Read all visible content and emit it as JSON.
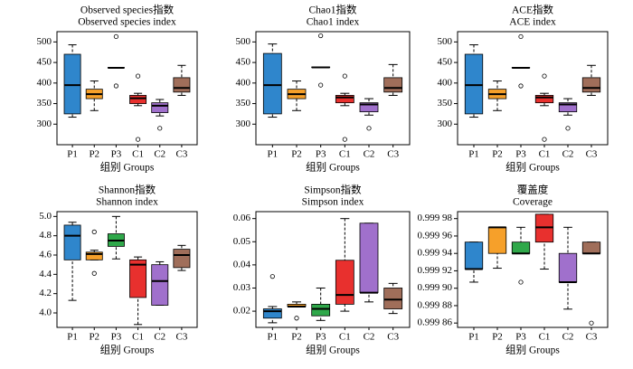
{
  "chart_data": [
    {
      "type": "box",
      "title": "Observed species指数",
      "subtitle": "Observed species index",
      "xlabel": "组别 Groups",
      "categories": [
        "P1",
        "P2",
        "P3",
        "C1",
        "C2",
        "C3"
      ],
      "colors": [
        "#2f86cc",
        "#f6a02a",
        "#2fa84a",
        "#e8302e",
        "#a070cc",
        "#a06e5a"
      ],
      "ylim": [
        250,
        525
      ],
      "yticks": [
        300,
        350,
        400,
        450,
        500
      ],
      "boxes": [
        {
          "min": 317,
          "q1": 325,
          "median": 395,
          "q3": 470,
          "max": 493,
          "outliers": []
        },
        {
          "min": 333,
          "q1": 362,
          "median": 373,
          "q3": 385,
          "max": 405,
          "outliers": []
        },
        {
          "min": 437,
          "q1": 437,
          "median": 437,
          "q3": 438,
          "max": 438,
          "outliers": [
            513,
            393
          ]
        },
        {
          "min": 345,
          "q1": 350,
          "median": 363,
          "q3": 370,
          "max": 375,
          "outliers": [
            417,
            263
          ]
        },
        {
          "min": 320,
          "q1": 328,
          "median": 345,
          "q3": 352,
          "max": 360,
          "outliers": [
            290
          ]
        },
        {
          "min": 370,
          "q1": 378,
          "median": 388,
          "q3": 413,
          "max": 443,
          "outliers": []
        }
      ]
    },
    {
      "type": "box",
      "title": "Chao1指数",
      "subtitle": "Chao1 index",
      "xlabel": "组别 Groups",
      "categories": [
        "P1",
        "P2",
        "P3",
        "C1",
        "C2",
        "C3"
      ],
      "colors": [
        "#2f86cc",
        "#f6a02a",
        "#2fa84a",
        "#e8302e",
        "#a070cc",
        "#a06e5a"
      ],
      "ylim": [
        250,
        525
      ],
      "yticks": [
        300,
        350,
        400,
        450,
        500
      ],
      "boxes": [
        {
          "min": 317,
          "q1": 325,
          "median": 395,
          "q3": 472,
          "max": 495,
          "outliers": []
        },
        {
          "min": 333,
          "q1": 362,
          "median": 373,
          "q3": 385,
          "max": 405,
          "outliers": []
        },
        {
          "min": 438,
          "q1": 438,
          "median": 438,
          "q3": 439,
          "max": 439,
          "outliers": [
            515,
            395
          ]
        },
        {
          "min": 345,
          "q1": 352,
          "median": 365,
          "q3": 370,
          "max": 375,
          "outliers": [
            417,
            263
          ]
        },
        {
          "min": 322,
          "q1": 330,
          "median": 348,
          "q3": 352,
          "max": 362,
          "outliers": [
            290
          ]
        },
        {
          "min": 370,
          "q1": 378,
          "median": 388,
          "q3": 413,
          "max": 445,
          "outliers": []
        }
      ]
    },
    {
      "type": "box",
      "title": "ACE指数",
      "subtitle": "ACE index",
      "xlabel": "组别 Groups",
      "categories": [
        "P1",
        "P2",
        "P3",
        "C1",
        "C2",
        "C3"
      ],
      "colors": [
        "#2f86cc",
        "#f6a02a",
        "#2fa84a",
        "#e8302e",
        "#a070cc",
        "#a06e5a"
      ],
      "ylim": [
        250,
        525
      ],
      "yticks": [
        300,
        350,
        400,
        450,
        500
      ],
      "boxes": [
        {
          "min": 317,
          "q1": 325,
          "median": 395,
          "q3": 470,
          "max": 493,
          "outliers": []
        },
        {
          "min": 333,
          "q1": 362,
          "median": 373,
          "q3": 385,
          "max": 405,
          "outliers": []
        },
        {
          "min": 437,
          "q1": 437,
          "median": 437,
          "q3": 438,
          "max": 438,
          "outliers": [
            513,
            393
          ]
        },
        {
          "min": 345,
          "q1": 352,
          "median": 365,
          "q3": 370,
          "max": 375,
          "outliers": [
            417,
            263
          ]
        },
        {
          "min": 322,
          "q1": 330,
          "median": 348,
          "q3": 352,
          "max": 362,
          "outliers": [
            290
          ]
        },
        {
          "min": 370,
          "q1": 378,
          "median": 388,
          "q3": 413,
          "max": 443,
          "outliers": []
        }
      ]
    },
    {
      "type": "box",
      "title": "Shannon指数",
      "subtitle": "Shannon index",
      "xlabel": "组别 Groups",
      "categories": [
        "P1",
        "P2",
        "P3",
        "C1",
        "C2",
        "C3"
      ],
      "colors": [
        "#2f86cc",
        "#f6a02a",
        "#2fa84a",
        "#e8302e",
        "#a070cc",
        "#a06e5a"
      ],
      "ylim": [
        3.85,
        5.05
      ],
      "yticks": [
        {
          "value": 4,
          "label": "4.0"
        },
        4.2,
        4.4,
        4.6,
        4.8,
        {
          "value": 5,
          "label": "5.0"
        }
      ],
      "boxes": [
        {
          "min": 4.13,
          "q1": 4.55,
          "median": 4.8,
          "q3": 4.91,
          "max": 4.94,
          "outliers": []
        },
        {
          "min": 4.55,
          "q1": 4.55,
          "median": 4.61,
          "q3": 4.63,
          "max": 4.65,
          "outliers": [
            4.84,
            4.41
          ]
        },
        {
          "min": 4.56,
          "q1": 4.69,
          "median": 4.75,
          "q3": 4.82,
          "max": 5.0,
          "outliers": []
        },
        {
          "min": 3.88,
          "q1": 4.16,
          "median": 4.5,
          "q3": 4.55,
          "max": 4.58,
          "outliers": []
        },
        {
          "min": 4.08,
          "q1": 4.08,
          "median": 4.33,
          "q3": 4.5,
          "max": 4.53,
          "outliers": []
        },
        {
          "min": 4.44,
          "q1": 4.47,
          "median": 4.6,
          "q3": 4.66,
          "max": 4.7,
          "outliers": []
        }
      ]
    },
    {
      "type": "box",
      "title": "Simpson指数",
      "subtitle": "Simpson index",
      "xlabel": "组别 Groups",
      "categories": [
        "P1",
        "P2",
        "P3",
        "C1",
        "C2",
        "C3"
      ],
      "colors": [
        "#2f86cc",
        "#f6a02a",
        "#2fa84a",
        "#e8302e",
        "#a070cc",
        "#a06e5a"
      ],
      "ylim": [
        0.013,
        0.063
      ],
      "yticks": [
        0.02,
        0.03,
        0.04,
        0.05,
        0.06
      ],
      "boxes": [
        {
          "min": 0.015,
          "q1": 0.017,
          "median": 0.02,
          "q3": 0.021,
          "max": 0.022,
          "outliers": [
            0.035
          ]
        },
        {
          "min": 0.022,
          "q1": 0.022,
          "median": 0.022,
          "q3": 0.023,
          "max": 0.024,
          "outliers": [
            0.017
          ]
        },
        {
          "min": 0.016,
          "q1": 0.018,
          "median": 0.021,
          "q3": 0.023,
          "max": 0.03,
          "outliers": []
        },
        {
          "min": 0.02,
          "q1": 0.023,
          "median": 0.027,
          "q3": 0.042,
          "max": 0.06,
          "outliers": []
        },
        {
          "min": 0.024,
          "q1": 0.028,
          "median": 0.028,
          "q3": 0.058,
          "max": 0.058,
          "outliers": []
        },
        {
          "min": 0.019,
          "q1": 0.021,
          "median": 0.025,
          "q3": 0.03,
          "max": 0.032,
          "outliers": []
        }
      ]
    },
    {
      "type": "box",
      "title": "覆盖度",
      "subtitle": "Coverage",
      "xlabel": "组别 Groups",
      "categories": [
        "P1",
        "P2",
        "P3",
        "C1",
        "C2",
        "C3"
      ],
      "colors": [
        "#2f86cc",
        "#f6a02a",
        "#2fa84a",
        "#e8302e",
        "#a070cc",
        "#a06e5a"
      ],
      "ylim": [
        0.999855,
        0.999988
      ],
      "yticks": [
        {
          "value": 0.99986,
          "label": "0.999 86"
        },
        {
          "value": 0.99988,
          "label": "0.999 88"
        },
        {
          "value": 0.9999,
          "label": "0.999 90"
        },
        {
          "value": 0.99992,
          "label": "0.999 92"
        },
        {
          "value": 0.99994,
          "label": "0.999 94"
        },
        {
          "value": 0.99996,
          "label": "0.999 96"
        },
        {
          "value": 0.99998,
          "label": "0.999 98"
        }
      ],
      "boxes": [
        {
          "min": 0.999907,
          "q1": 0.999922,
          "median": 0.999922,
          "q3": 0.999953,
          "max": 0.999953,
          "outliers": []
        },
        {
          "min": 0.999923,
          "q1": 0.99994,
          "median": 0.99997,
          "q3": 0.99997,
          "max": 0.99997,
          "outliers": []
        },
        {
          "min": 0.99994,
          "q1": 0.99994,
          "median": 0.99994,
          "q3": 0.999953,
          "max": 0.99997,
          "outliers": [
            0.999907
          ]
        },
        {
          "min": 0.999922,
          "q1": 0.999953,
          "median": 0.99997,
          "q3": 0.999985,
          "max": 0.999985,
          "outliers": []
        },
        {
          "min": 0.999876,
          "q1": 0.999907,
          "median": 0.999907,
          "q3": 0.99994,
          "max": 0.99997,
          "outliers": []
        },
        {
          "min": 0.99994,
          "q1": 0.99994,
          "median": 0.99994,
          "q3": 0.999953,
          "max": 0.999953,
          "outliers": [
            0.99986
          ]
        }
      ]
    }
  ]
}
